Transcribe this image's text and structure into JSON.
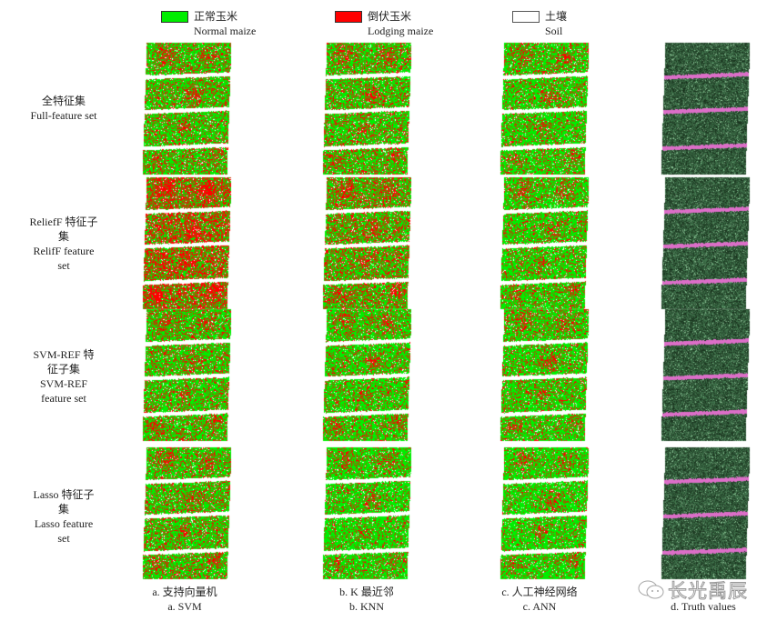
{
  "legend": [
    {
      "cn": "正常玉米",
      "en": "Normal maize",
      "color": "#00ee00"
    },
    {
      "cn": "倒伏玉米",
      "en": "Lodging maize",
      "color": "#ff0000"
    },
    {
      "cn": "土壤",
      "en": "Soil",
      "color": "#ffffff"
    }
  ],
  "rows": [
    {
      "lines": [
        "全特征集",
        "Full-feature set"
      ]
    },
    {
      "lines": [
        "ReliefF 特征子",
        "集",
        "RelifF feature",
        "set"
      ]
    },
    {
      "lines": [
        "SVM-REF 特",
        "征子集",
        "SVM-REF",
        "feature set"
      ]
    },
    {
      "lines": [
        "Lasso  特征子",
        "集",
        "Lasso feature",
        "set"
      ]
    }
  ],
  "columns": [
    {
      "cn": "a.  支持向量机",
      "en": "a. SVM",
      "type": "classification"
    },
    {
      "cn": "b. K 最近邻",
      "en": "b. KNN",
      "type": "classification"
    },
    {
      "cn": "c.  人工神经网络",
      "en": "c. ANN",
      "type": "classification"
    },
    {
      "cn": "",
      "en": "d. Truth values",
      "type": "truth"
    }
  ],
  "lodging_intensity": [
    [
      0.35,
      0.35,
      0.3
    ],
    [
      0.65,
      0.45,
      0.3
    ],
    [
      0.35,
      0.3,
      0.3
    ],
    [
      0.35,
      0.25,
      0.25
    ]
  ],
  "watermark": {
    "text": "长光禹辰",
    "icon": "wechat-icon"
  }
}
